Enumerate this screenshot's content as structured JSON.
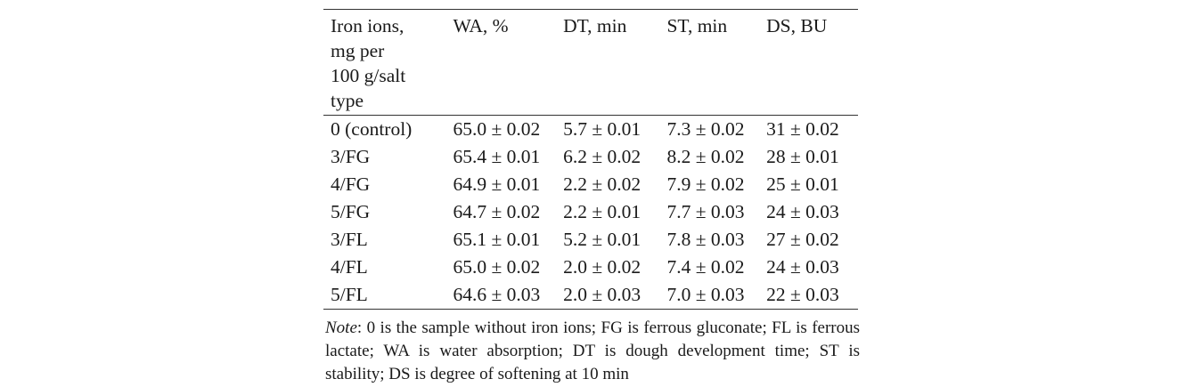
{
  "table": {
    "headers": {
      "col0_lines": [
        "Iron ions,",
        "mg per",
        "100 g/salt",
        "type"
      ],
      "col1": "WA, %",
      "col2": "DT, min",
      "col3": "ST, min",
      "col4": "DS, BU"
    },
    "rows": [
      {
        "label": "0 (control)",
        "wa": "65.0 ± 0.02",
        "dt": "5.7 ± 0.01",
        "st": "7.3 ± 0.02",
        "ds": "31 ± 0.02"
      },
      {
        "label": "3/FG",
        "wa": "65.4 ± 0.01",
        "dt": "6.2 ± 0.02",
        "st": "8.2 ± 0.02",
        "ds": "28 ± 0.01"
      },
      {
        "label": "4/FG",
        "wa": "64.9 ± 0.01",
        "dt": "2.2 ± 0.02",
        "st": "7.9 ± 0.02",
        "ds": "25 ± 0.01"
      },
      {
        "label": "5/FG",
        "wa": "64.7 ± 0.02",
        "dt": "2.2 ± 0.01",
        "st": "7.7 ± 0.03",
        "ds": "24 ± 0.03"
      },
      {
        "label": "3/FL",
        "wa": "65.1 ± 0.01",
        "dt": "5.2 ± 0.01",
        "st": "7.8 ± 0.03",
        "ds": "27 ± 0.02"
      },
      {
        "label": "4/FL",
        "wa": "65.0 ± 0.02",
        "dt": "2.0 ± 0.02",
        "st": "7.4 ± 0.02",
        "ds": "24 ± 0.03"
      },
      {
        "label": "5/FL",
        "wa": "64.6 ± 0.03",
        "dt": "2.0 ± 0.03",
        "st": "7.0 ± 0.03",
        "ds": "22 ± 0.03"
      }
    ]
  },
  "note": {
    "label": "Note",
    "text": ": 0 is the sample without iron ions; FG is ferrous gluconate; FL is ferrous lactate; WA is water absorption; DT is dough development time; ST is stability; DS is degree of softening at 10 min"
  }
}
